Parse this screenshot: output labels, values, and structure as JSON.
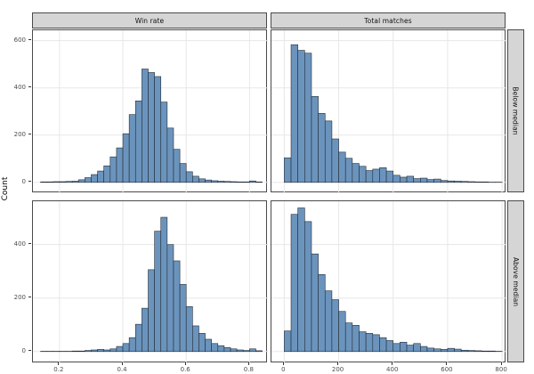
{
  "colors": {
    "bar_fill": "#6b94bd",
    "bar_stroke": "#232c36",
    "strip_fill": "#d5d5d5",
    "strip_border": "#4a4a4a",
    "panel_border": "#4a4a4a",
    "grid": "#e7e7e7",
    "tick_label": "#4d4d4d",
    "axis_title": "#000000",
    "background": "#ffffff"
  },
  "chart_data": {
    "type": "bar",
    "subtype": "faceted_histogram",
    "title": "",
    "ylabel": "Count",
    "xlabel": "",
    "grid": "major",
    "legend": "none",
    "col_labels": [
      "Win rate",
      "Total matches"
    ],
    "row_labels": [
      "Below median",
      "Above median"
    ],
    "x_axes": [
      {
        "col": "Win rate",
        "domain": [
          0.116,
          0.858
        ],
        "ticks": [
          0.2,
          0.4,
          0.6,
          0.8
        ],
        "tick_labels": [
          "0.2",
          "0.4",
          "0.6",
          "0.8"
        ]
      },
      {
        "col": "Total matches",
        "domain": [
          -47,
          816
        ],
        "ticks": [
          0,
          200,
          400,
          600,
          800
        ],
        "tick_labels": [
          "0",
          "200",
          "400",
          "600",
          "800"
        ]
      }
    ],
    "y_axes": [
      {
        "row": "Below median",
        "domain": [
          -46,
          644
        ],
        "ticks": [
          0,
          200,
          400,
          600
        ],
        "tick_labels": [
          "0",
          "200",
          "400",
          "600"
        ]
      },
      {
        "row": "Above median",
        "domain": [
          -44,
          562
        ],
        "ticks": [
          0,
          200,
          400
        ],
        "tick_labels": [
          "0",
          "200",
          "400"
        ]
      }
    ],
    "facets": [
      {
        "row": "Below median",
        "col": "Win rate",
        "bin_start": 0.14,
        "bin_width": 0.02,
        "counts": [
          2,
          2,
          3,
          3,
          4,
          5,
          11,
          20,
          33,
          48,
          70,
          108,
          146,
          206,
          287,
          345,
          480,
          465,
          448,
          340,
          230,
          140,
          80,
          45,
          26,
          15,
          10,
          7,
          5,
          4,
          3,
          2,
          2,
          6,
          2
        ]
      },
      {
        "row": "Below median",
        "col": "Total matches",
        "bin_start": 0,
        "bin_width": 25,
        "counts": [
          104,
          583,
          559,
          547,
          364,
          292,
          260,
          184,
          128,
          102,
          80,
          68,
          50,
          56,
          62,
          48,
          30,
          22,
          26,
          16,
          18,
          12,
          14,
          8,
          6,
          5,
          4,
          3,
          2,
          2,
          1,
          1
        ]
      },
      {
        "row": "Above median",
        "col": "Win rate",
        "bin_start": 0.14,
        "bin_width": 0.02,
        "counts": [
          1,
          1,
          1,
          1,
          1,
          2,
          2,
          4,
          6,
          8,
          6,
          10,
          19,
          30,
          52,
          102,
          162,
          306,
          450,
          502,
          400,
          339,
          251,
          168,
          96,
          68,
          46,
          30,
          22,
          15,
          10,
          6,
          4,
          10,
          3
        ]
      },
      {
        "row": "Above median",
        "col": "Total matches",
        "bin_start": 0,
        "bin_width": 25,
        "counts": [
          77,
          513,
          537,
          486,
          365,
          288,
          227,
          194,
          150,
          107,
          98,
          74,
          68,
          63,
          52,
          41,
          30,
          35,
          24,
          30,
          19,
          13,
          10,
          8,
          12,
          9,
          5,
          4,
          3,
          2,
          2,
          1
        ]
      }
    ]
  }
}
